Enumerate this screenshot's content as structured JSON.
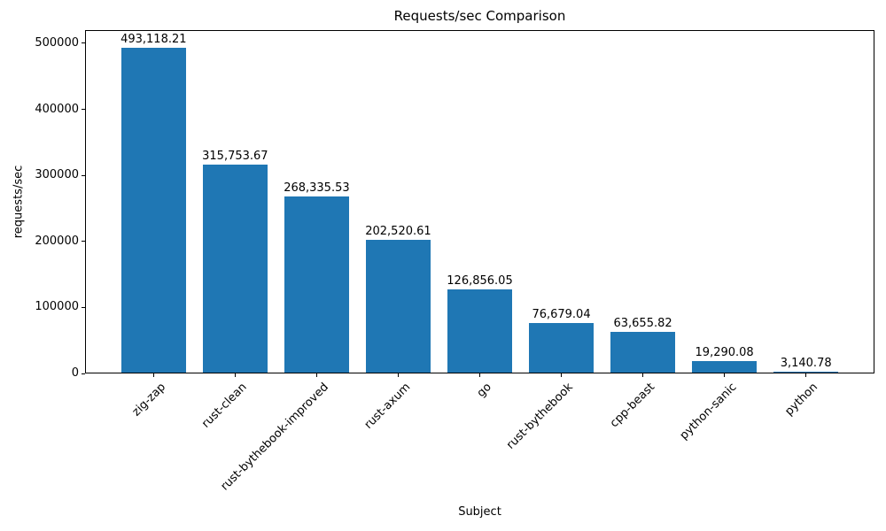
{
  "chart_data": {
    "type": "bar",
    "title": "Requests/sec Comparison",
    "xlabel": "Subject",
    "ylabel": "requests/sec",
    "categories": [
      "zig-zap",
      "rust-clean",
      "rust-bythebook-improved",
      "rust-axum",
      "go",
      "rust-bythebook",
      "cpp-beast",
      "python-sanic",
      "python"
    ],
    "values": [
      493118.21,
      315753.67,
      268335.53,
      202520.61,
      126856.05,
      76679.04,
      63655.82,
      19290.08,
      3140.78
    ],
    "value_labels": [
      "493,118.21",
      "315,753.67",
      "268,335.53",
      "202,520.61",
      "126,856.05",
      "76,679.04",
      "63,655.82",
      "19,290.08",
      "3,140.78"
    ],
    "yticks": [
      0,
      100000,
      200000,
      300000,
      400000,
      500000
    ],
    "ytick_labels": [
      "0",
      "100000",
      "200000",
      "300000",
      "400000",
      "500000"
    ],
    "ylim": [
      0,
      520000
    ],
    "bar_color": "#1f77b4",
    "bar_width_ratio": 0.8,
    "x_tick_rotation": 45,
    "grid": false,
    "legend": null
  }
}
